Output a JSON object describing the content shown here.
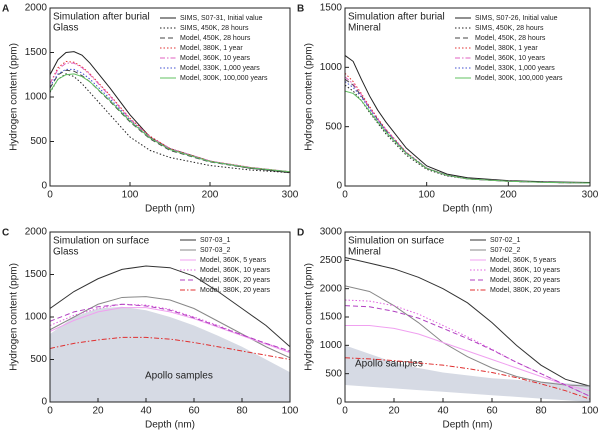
{
  "chart_data": [
    {
      "type": "line",
      "label": "A",
      "annotation": [
        "Simulation after burial",
        "Glass"
      ],
      "xlabel": "Depth (nm)",
      "ylabel": "Hydrogen content (ppm)",
      "x": [
        0,
        10,
        20,
        30,
        40,
        50,
        75,
        100,
        125,
        150,
        200,
        250,
        300
      ],
      "xlim": [
        0,
        300
      ],
      "xticks": [
        0,
        100,
        200,
        300
      ],
      "ylim": [
        0,
        2000
      ],
      "yticks": [
        0,
        500,
        1000,
        1500,
        2000
      ],
      "series": [
        {
          "name": "SIMS, S07-31, Initial value",
          "color": "#222222",
          "dash": "solid",
          "values": [
            1250,
            1420,
            1500,
            1510,
            1470,
            1380,
            1100,
            800,
            550,
            420,
            280,
            200,
            150
          ]
        },
        {
          "name": "SIMS, 450K, 28 hours",
          "color": "#222222",
          "dash": "dotted",
          "values": [
            1050,
            1200,
            1260,
            1230,
            1150,
            1050,
            800,
            550,
            400,
            320,
            230,
            180,
            150
          ]
        },
        {
          "name": "Model, 450K, 28 hours",
          "color": "#444444",
          "dash": "dashed",
          "values": [
            1100,
            1250,
            1300,
            1290,
            1240,
            1170,
            950,
            720,
            530,
            400,
            270,
            200,
            160
          ]
        },
        {
          "name": "Model, 380K, 1 year",
          "color": "#e03030",
          "dash": "dotted",
          "values": [
            1150,
            1330,
            1400,
            1390,
            1340,
            1260,
            1020,
            760,
            560,
            420,
            280,
            210,
            160
          ]
        },
        {
          "name": "Model, 360K, 10 years",
          "color": "#e060c0",
          "dash": "dashdot",
          "values": [
            1150,
            1310,
            1380,
            1380,
            1330,
            1250,
            1010,
            750,
            550,
            420,
            280,
            210,
            160
          ]
        },
        {
          "name": "Model, 330K, 1,000 years",
          "color": "#4050d0",
          "dash": "dotted",
          "values": [
            1120,
            1260,
            1310,
            1310,
            1270,
            1200,
            980,
            740,
            540,
            410,
            275,
            205,
            160
          ]
        },
        {
          "name": "Model, 300K, 100,000 years",
          "color": "#60c060",
          "dash": "solid",
          "values": [
            1060,
            1200,
            1250,
            1260,
            1230,
            1170,
            960,
            730,
            540,
            410,
            275,
            205,
            160
          ]
        }
      ]
    },
    {
      "type": "line",
      "label": "B",
      "annotation": [
        "Simulation after burial",
        "Mineral"
      ],
      "xlabel": "Depth (nm)",
      "ylabel": "Hydrogen content (ppm)",
      "x": [
        0,
        10,
        20,
        30,
        40,
        50,
        75,
        100,
        125,
        150,
        200,
        250,
        300
      ],
      "xlim": [
        0,
        300
      ],
      "xticks": [
        0,
        100,
        200,
        300
      ],
      "ylim": [
        0,
        1500
      ],
      "yticks": [
        0,
        500,
        1000,
        1500
      ],
      "series": [
        {
          "name": "SIMS, S07-26, Initial value",
          "color": "#222222",
          "dash": "solid",
          "values": [
            1100,
            1050,
            900,
            760,
            640,
            540,
            320,
            170,
            100,
            70,
            45,
            35,
            30
          ]
        },
        {
          "name": "SIMS, 450K, 28 hours",
          "color": "#222222",
          "dash": "dotted",
          "values": [
            850,
            800,
            720,
            620,
            530,
            440,
            260,
            140,
            85,
            60,
            40,
            30,
            25
          ]
        },
        {
          "name": "Model, 450K, 28 hours",
          "color": "#444444",
          "dash": "dashed",
          "values": [
            900,
            850,
            760,
            660,
            560,
            470,
            280,
            150,
            90,
            60,
            40,
            30,
            25
          ]
        },
        {
          "name": "Model, 380K, 1 year",
          "color": "#e03030",
          "dash": "dotted",
          "values": [
            950,
            880,
            780,
            670,
            570,
            480,
            285,
            150,
            90,
            60,
            40,
            30,
            25
          ]
        },
        {
          "name": "Model, 360K, 10 years",
          "color": "#e060c0",
          "dash": "dashdot",
          "values": [
            920,
            860,
            770,
            660,
            565,
            475,
            282,
            150,
            90,
            60,
            40,
            30,
            25
          ]
        },
        {
          "name": "Model, 330K, 1,000 years",
          "color": "#4050d0",
          "dash": "dotted",
          "values": [
            880,
            830,
            750,
            650,
            555,
            465,
            280,
            150,
            90,
            60,
            40,
            30,
            25
          ]
        },
        {
          "name": "Model, 300K, 100,000 years",
          "color": "#60c060",
          "dash": "solid",
          "values": [
            800,
            780,
            720,
            630,
            540,
            455,
            275,
            148,
            90,
            60,
            40,
            30,
            25
          ]
        }
      ]
    },
    {
      "type": "line",
      "label": "C",
      "annotation": [
        "Simulation on surface",
        "Glass"
      ],
      "xlabel": "Depth (nm)",
      "ylabel": "Hydrogen content (ppm)",
      "x": [
        0,
        10,
        20,
        30,
        40,
        50,
        60,
        70,
        80,
        90,
        100
      ],
      "xlim": [
        0,
        100
      ],
      "xticks": [
        0,
        20,
        40,
        60,
        80,
        100
      ],
      "ylim": [
        0,
        2000
      ],
      "yticks": [
        0,
        500,
        1000,
        1500,
        2000
      ],
      "area": {
        "label": "Apollo samples",
        "color": "#d6dae4",
        "upper": [
          800,
          1000,
          1100,
          1120,
          1080,
          1000,
          900,
          780,
          650,
          500,
          350
        ]
      },
      "series": [
        {
          "name": "S07-03_1",
          "color": "#333333",
          "dash": "solid",
          "values": [
            1100,
            1300,
            1450,
            1560,
            1600,
            1580,
            1480,
            1300,
            1100,
            900,
            650
          ]
        },
        {
          "name": "S07-03_2",
          "color": "#888888",
          "dash": "solid",
          "values": [
            850,
            1000,
            1150,
            1230,
            1240,
            1200,
            1100,
            950,
            800,
            650,
            520
          ]
        },
        {
          "name": "Model, 360K, 5 years",
          "color": "#f0a0f0",
          "dash": "solid",
          "values": [
            830,
            960,
            1060,
            1110,
            1110,
            1060,
            980,
            880,
            780,
            680,
            580
          ]
        },
        {
          "name": "Model, 360K, 10 years",
          "color": "#e060e0",
          "dash": "dotted",
          "values": [
            900,
            1020,
            1100,
            1150,
            1140,
            1090,
            1000,
            900,
            790,
            690,
            590
          ]
        },
        {
          "name": "Model, 360K, 20 years",
          "color": "#b040c0",
          "dash": "dashed",
          "values": [
            950,
            1060,
            1120,
            1150,
            1130,
            1080,
            990,
            890,
            790,
            690,
            600
          ]
        },
        {
          "name": "Model, 380K, 20 years",
          "color": "#e03030",
          "dash": "dashdot",
          "values": [
            630,
            690,
            730,
            760,
            760,
            740,
            700,
            650,
            600,
            550,
            500
          ]
        }
      ]
    },
    {
      "type": "line",
      "label": "D",
      "annotation": [
        "Simulation on surface",
        "Mineral"
      ],
      "xlabel": "Depth (nm)",
      "ylabel": "Hydrogen content (ppm)",
      "x": [
        0,
        10,
        20,
        30,
        40,
        50,
        60,
        70,
        80,
        90,
        100
      ],
      "xlim": [
        0,
        100
      ],
      "xticks": [
        0,
        20,
        40,
        60,
        80,
        100
      ],
      "ylim": [
        0,
        3000
      ],
      "yticks": [
        0,
        500,
        1000,
        1500,
        2000,
        2500,
        3000
      ],
      "area": {
        "label": "Apollo samples",
        "color": "#d6dae4",
        "upper": [
          1000,
          850,
          700,
          600,
          520,
          470,
          420,
          390,
          360,
          330,
          300
        ],
        "lower": [
          300,
          270,
          240,
          210,
          180,
          150,
          120,
          90,
          60,
          30,
          0
        ]
      },
      "series": [
        {
          "name": "S07-02_1",
          "color": "#333333",
          "dash": "solid",
          "values": [
            2550,
            2450,
            2350,
            2200,
            2000,
            1750,
            1400,
            1000,
            650,
            400,
            280
          ]
        },
        {
          "name": "S07-02_2",
          "color": "#888888",
          "dash": "solid",
          "values": [
            2050,
            1950,
            1700,
            1400,
            1050,
            800,
            600,
            450,
            350,
            300,
            280
          ]
        },
        {
          "name": "Model, 360K, 5 years",
          "color": "#f0a0f0",
          "dash": "solid",
          "values": [
            1350,
            1350,
            1300,
            1200,
            1050,
            900,
            750,
            600,
            450,
            300,
            200
          ]
        },
        {
          "name": "Model, 360K, 10 years",
          "color": "#e060e0",
          "dash": "dotted",
          "values": [
            1800,
            1780,
            1700,
            1550,
            1350,
            1150,
            930,
            700,
            500,
            300,
            100
          ]
        },
        {
          "name": "Model, 360K, 20 years",
          "color": "#b040c0",
          "dash": "dashed",
          "values": [
            1700,
            1680,
            1600,
            1480,
            1300,
            1120,
            920,
            700,
            500,
            300,
            100
          ]
        },
        {
          "name": "Model, 380K, 20 years",
          "color": "#e03030",
          "dash": "dashdot",
          "values": [
            780,
            760,
            730,
            690,
            650,
            590,
            520,
            430,
            320,
            200,
            50
          ]
        }
      ]
    }
  ]
}
